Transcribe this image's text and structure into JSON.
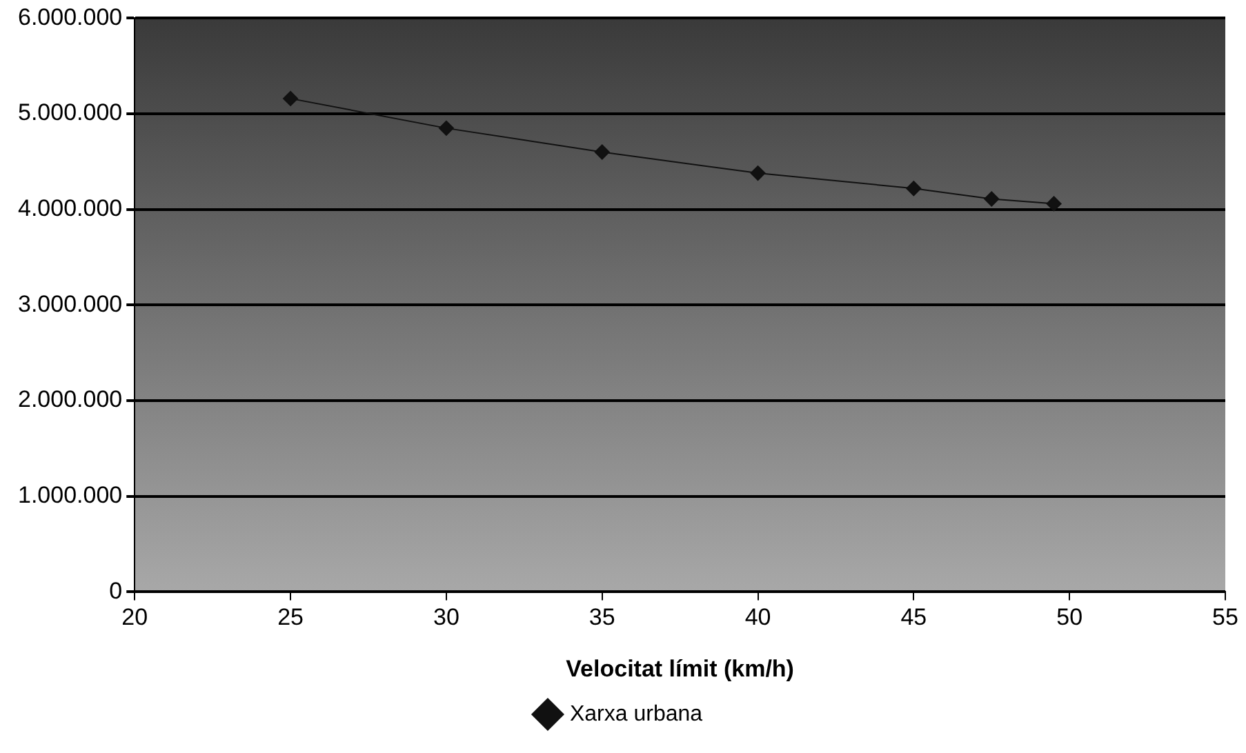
{
  "chart_data": {
    "type": "line",
    "xlabel": "Velocitat límit (km/h)",
    "x": [
      25,
      30,
      35,
      40,
      45,
      47.5,
      49.5
    ],
    "series": [
      {
        "name": "Xarxa urbana",
        "color": "#111111",
        "values": [
          5160000,
          4850000,
          4600000,
          4380000,
          4220000,
          4110000,
          4060000
        ]
      }
    ],
    "xlim": [
      20,
      55
    ],
    "xticks": [
      20,
      25,
      30,
      35,
      40,
      45,
      50,
      55
    ],
    "ylim": [
      0,
      6000000
    ],
    "yticks": [
      {
        "value": 0,
        "label": "0"
      },
      {
        "value": 1000000,
        "label": "1.000.000"
      },
      {
        "value": 2000000,
        "label": "2.000.000"
      },
      {
        "value": 3000000,
        "label": "3.000.000"
      },
      {
        "value": 4000000,
        "label": "4.000.000"
      },
      {
        "value": 5000000,
        "label": "5.000.000"
      },
      {
        "value": 6000000,
        "label": "6.000.000"
      }
    ],
    "grid": "y",
    "legend": "bottom",
    "marker": "diamond",
    "line_style": "solid"
  }
}
